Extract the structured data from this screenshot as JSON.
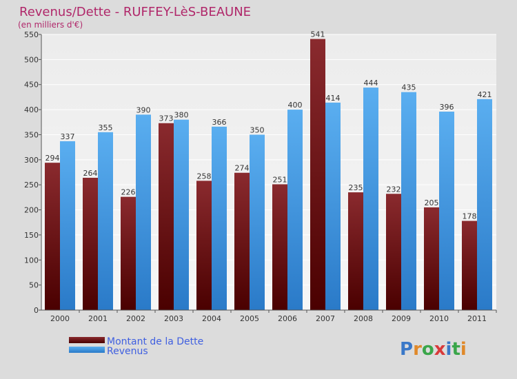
{
  "colors": {
    "debt_top": "#8a2a2e",
    "debt_bottom": "#4a0000",
    "revenue_top": "#5aaef0",
    "revenue_bottom": "#2a7ac8",
    "title": "#b0276a",
    "legend_text": "#3f5fe0",
    "grid": "#ffffff"
  },
  "chart_data": {
    "type": "bar",
    "title": "Revenus/Dette - RUFFEY-LèS-BEAUNE",
    "subtitle": "(en milliers d'€)",
    "categories": [
      "2000",
      "2001",
      "2002",
      "2003",
      "2004",
      "2005",
      "2006",
      "2007",
      "2008",
      "2009",
      "2010",
      "2011"
    ],
    "series": [
      {
        "name": "Montant de la Dette",
        "values": [
          294,
          264,
          226,
          373,
          258,
          274,
          251,
          541,
          235,
          232,
          205,
          178
        ]
      },
      {
        "name": "Revenus",
        "values": [
          337,
          355,
          390,
          380,
          366,
          350,
          400,
          414,
          444,
          435,
          396,
          421
        ]
      }
    ],
    "ylim": [
      0,
      550
    ],
    "yticks": [
      0,
      50,
      100,
      150,
      200,
      250,
      300,
      350,
      400,
      450,
      500,
      550
    ],
    "grid": true,
    "legend": "bottom-left"
  },
  "logo": {
    "letters": [
      "P",
      "r",
      "o",
      "x",
      "i",
      "t",
      "i"
    ]
  }
}
